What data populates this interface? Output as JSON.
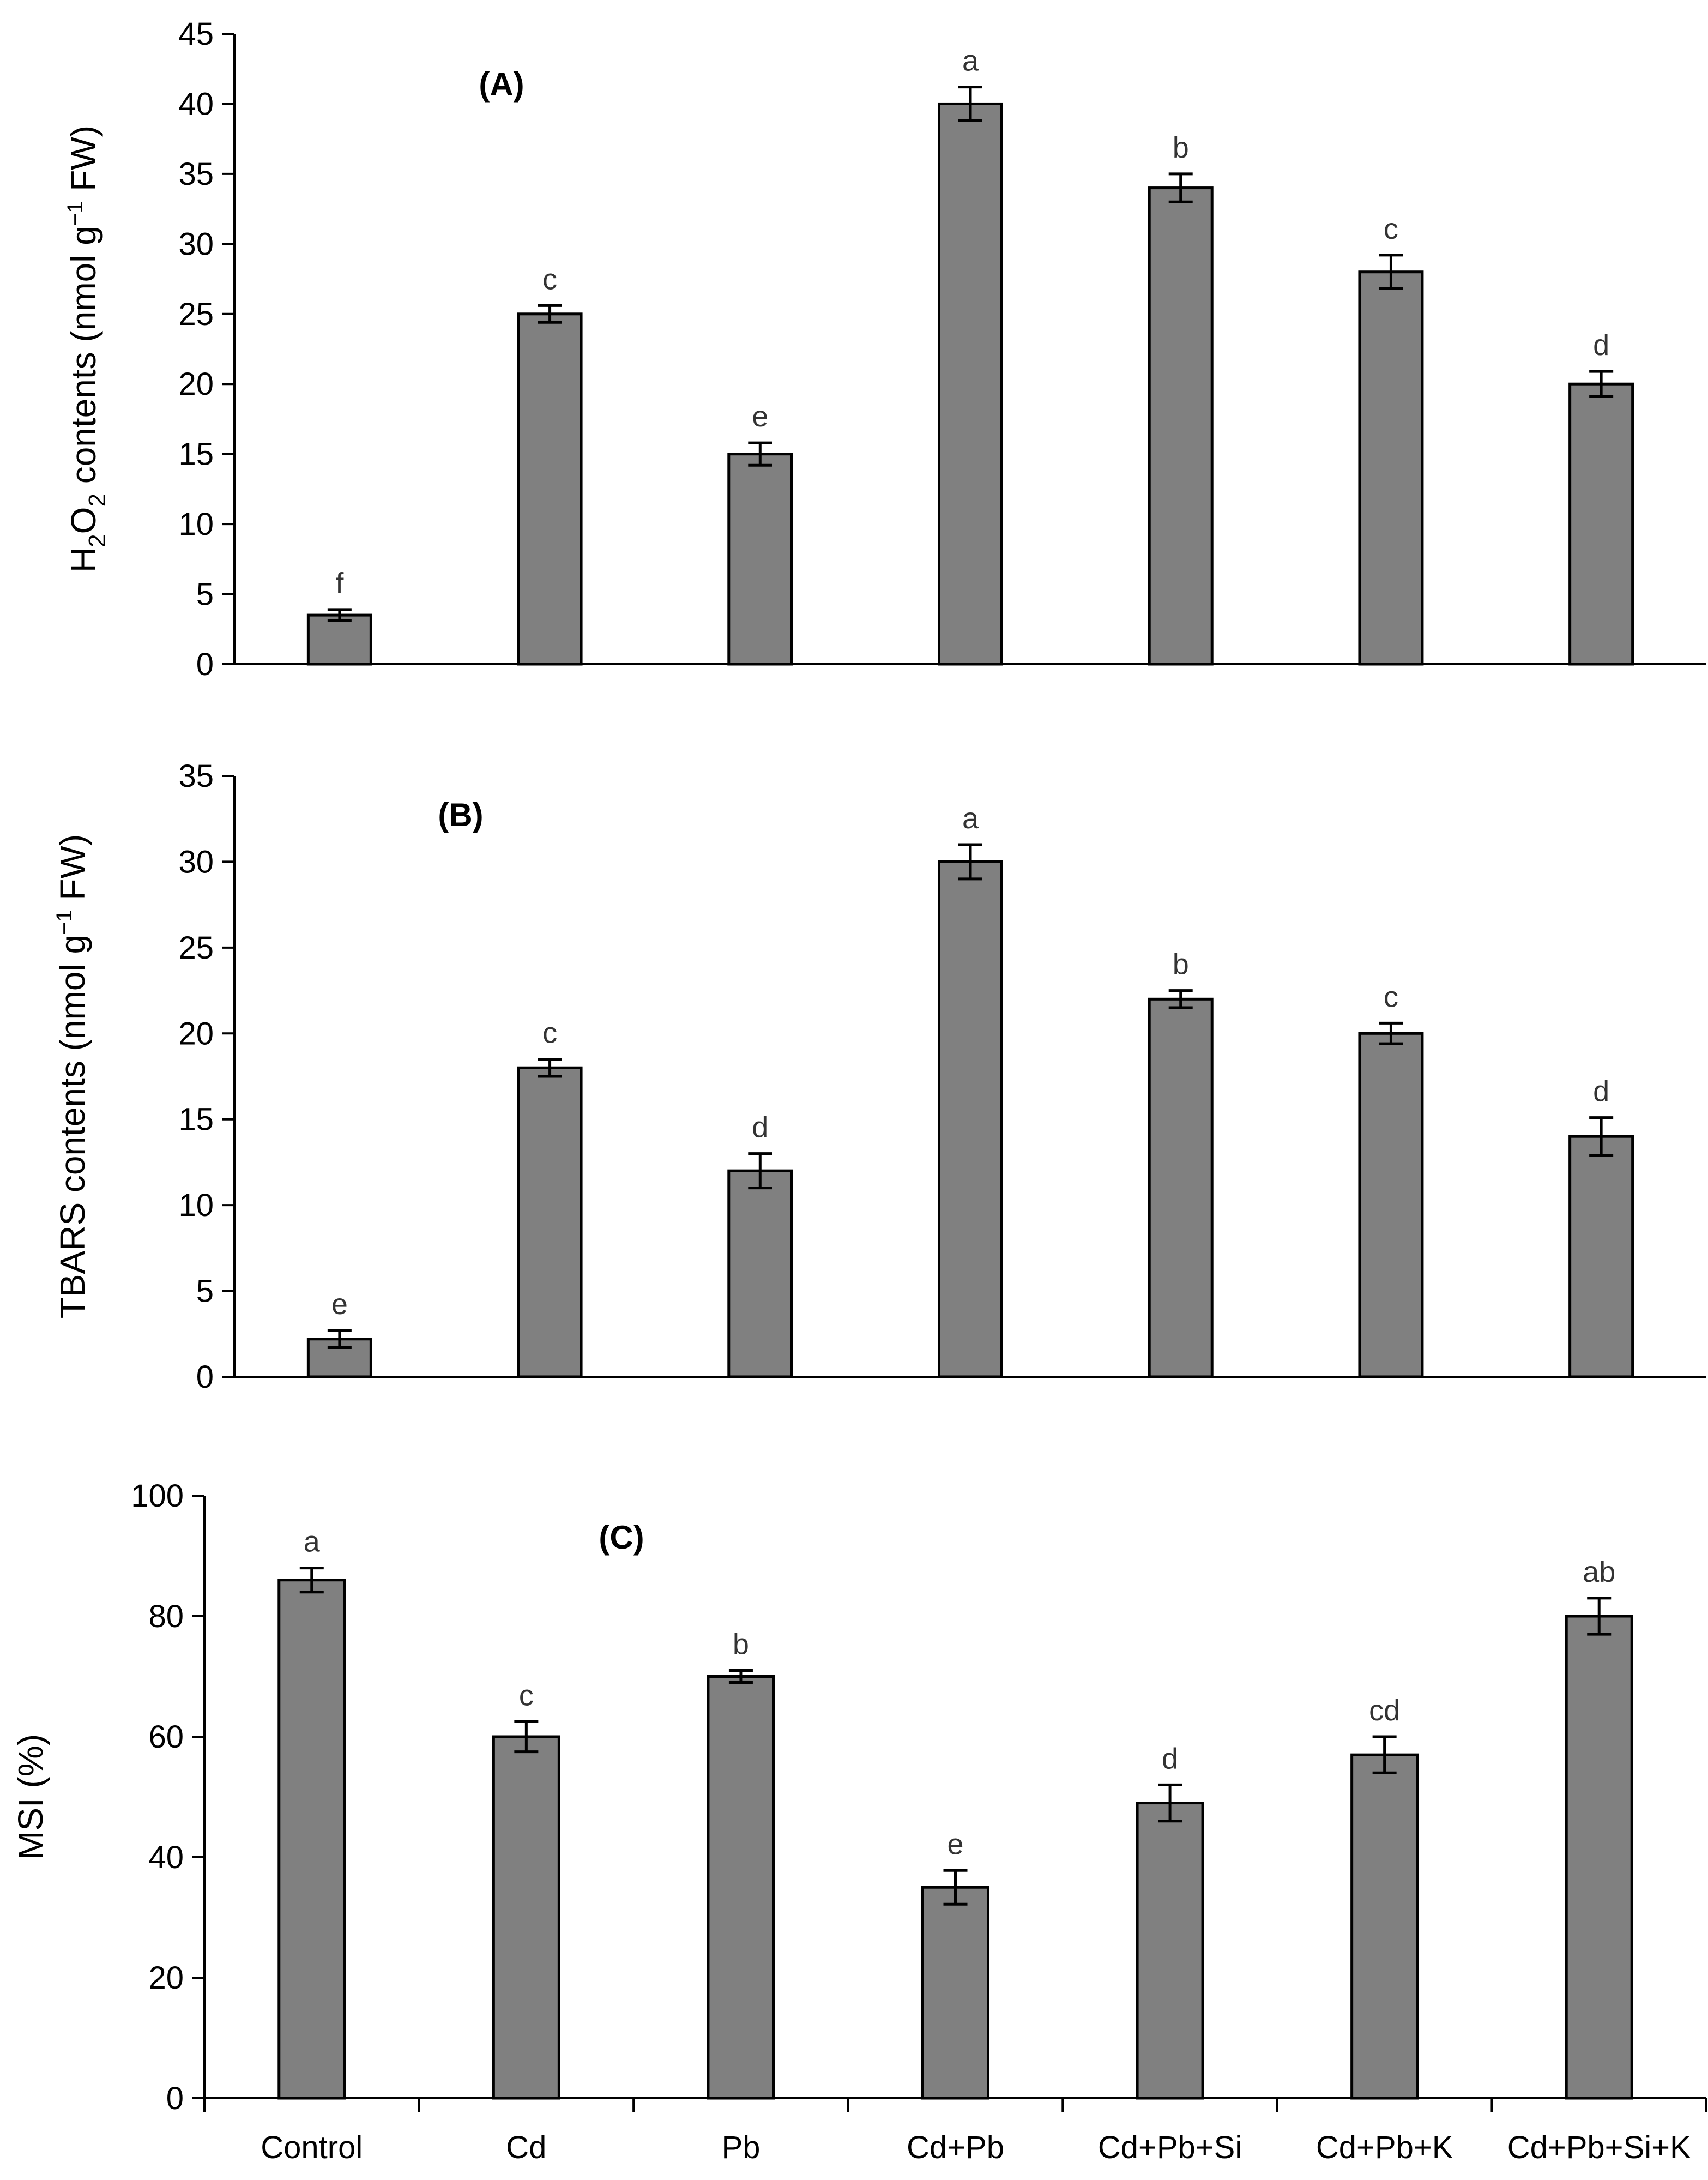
{
  "chart_data": [
    {
      "type": "bar",
      "panel_label": "(A)",
      "ylabel_parts": [
        "H",
        "2",
        "O",
        "2",
        " contents (nmol g",
        "−1",
        " FW)"
      ],
      "ylim": [
        0,
        45
      ],
      "yticks": [
        0,
        5,
        10,
        15,
        20,
        25,
        30,
        35,
        40,
        45
      ],
      "categories": [
        "Control",
        "Cd",
        "Pb",
        "Cd+Pb",
        "Cd+Pb+Si",
        "Cd+Pb+K",
        "Cd+Pb+Si+K"
      ],
      "values": [
        3.5,
        25,
        15,
        40,
        34,
        28,
        20
      ],
      "errors": [
        0.4,
        0.6,
        0.8,
        1.2,
        1.0,
        1.2,
        0.9
      ],
      "letters": [
        "f",
        "c",
        "e",
        "a",
        "b",
        "c",
        "d"
      ],
      "show_category_labels": false
    },
    {
      "type": "bar",
      "panel_label": "(B)",
      "ylabel_parts": [
        "TBARS contents (nmol g",
        "−1",
        " FW)"
      ],
      "ylim": [
        0,
        35
      ],
      "yticks": [
        0,
        5,
        10,
        15,
        20,
        25,
        30,
        35
      ],
      "categories": [
        "Control",
        "Cd",
        "Pb",
        "Cd+Pb",
        "Cd+Pb+Si",
        "Cd+Pb+K",
        "Cd+Pb+Si+K"
      ],
      "values": [
        2.2,
        18,
        12,
        30,
        22,
        20,
        14
      ],
      "errors": [
        0.5,
        0.5,
        1.0,
        1.0,
        0.5,
        0.6,
        1.1
      ],
      "letters": [
        "e",
        "c",
        "d",
        "a",
        "b",
        "c",
        "d"
      ],
      "show_category_labels": false
    },
    {
      "type": "bar",
      "panel_label": "(C)",
      "ylabel_parts": [
        "MSI (%)"
      ],
      "ylim": [
        0,
        100
      ],
      "yticks": [
        0,
        20,
        40,
        60,
        80,
        100
      ],
      "categories": [
        "Control",
        "Cd",
        "Pb",
        "Cd+Pb",
        "Cd+Pb+Si",
        "Cd+Pb+K",
        "Cd+Pb+Si+K"
      ],
      "values": [
        86,
        60,
        70,
        35,
        49,
        57,
        80
      ],
      "errors": [
        2.0,
        2.5,
        1.0,
        2.8,
        3.0,
        3.0,
        3.0
      ],
      "letters": [
        "a",
        "c",
        "b",
        "e",
        "d",
        "cd",
        "ab"
      ],
      "show_category_labels": true
    }
  ]
}
